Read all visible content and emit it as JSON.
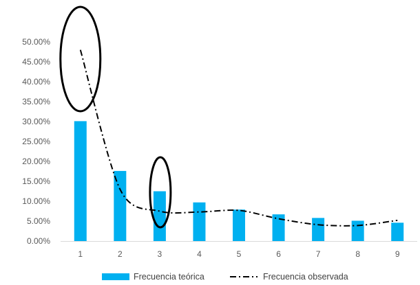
{
  "chart_data": {
    "type": "bar",
    "categories": [
      "1",
      "2",
      "3",
      "4",
      "5",
      "6",
      "7",
      "8",
      "9"
    ],
    "series": [
      {
        "name": "Frecuencia teórica",
        "kind": "bar",
        "color": "#00B0F0",
        "values": [
          30.1,
          17.6,
          12.5,
          9.7,
          7.9,
          6.7,
          5.8,
          5.1,
          4.6
        ]
      },
      {
        "name": "Frecuencia observada",
        "kind": "line",
        "style": "dash-dot",
        "color": "#000000",
        "values": [
          48.0,
          13.0,
          7.5,
          7.3,
          7.7,
          5.6,
          4.1,
          3.9,
          5.2
        ]
      }
    ],
    "ylim": [
      0,
      50
    ],
    "yticks": [
      "0.00%",
      "5.00%",
      "10.00%",
      "15.00%",
      "20.00%",
      "25.00%",
      "30.00%",
      "35.00%",
      "40.00%",
      "45.00%",
      "50.00%"
    ],
    "xlabel": "",
    "ylabel": "",
    "grid": false,
    "legend_position": "bottom",
    "annotations": [
      {
        "type": "ellipse",
        "target": "category 1",
        "color": "#000000"
      },
      {
        "type": "ellipse",
        "target": "category 3",
        "color": "#000000"
      }
    ]
  }
}
